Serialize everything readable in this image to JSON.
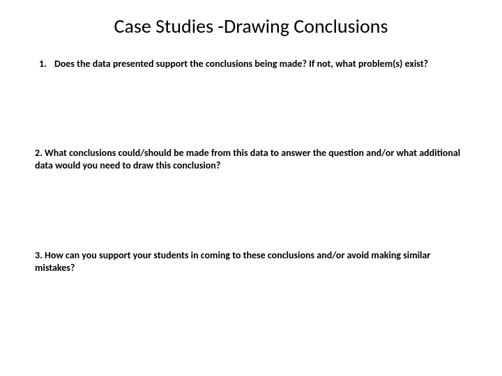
{
  "title": "Case Studies -Drawing Conclusions",
  "q1_num": "1.",
  "q1_text": "Does the data presented support the conclusions being made? If not, what problem(s) exist?",
  "q2_text": "2. What conclusions could/should be made from this data to answer the question and/or what additional data would you need to draw this conclusion?",
  "q3_text": "3. How can you support your students in coming to these conclusions and/or avoid making similar mistakes?"
}
